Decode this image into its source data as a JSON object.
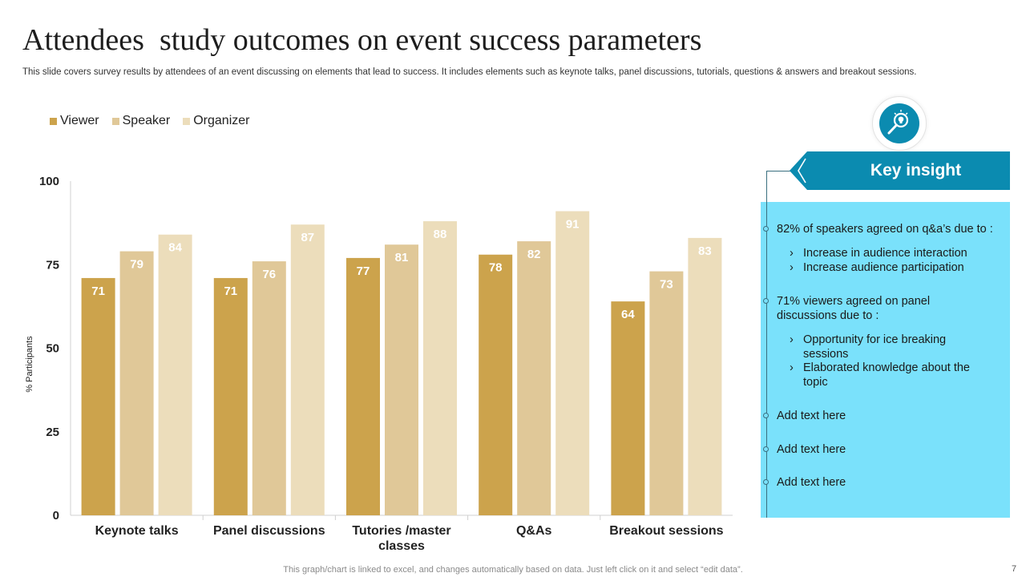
{
  "slide": {
    "title": "Attendees  study outcomes on event success parameters",
    "subtitle": "This slide covers survey results by attendees of an event discussing on elements that lead to success. It includes elements such as keynote talks, panel discussions, tutorials, questions & answers and breakout sessions.",
    "footer": "This graph/chart is linked to excel,  and changes automatically based on data. Just left click on it and select “edit data”.",
    "page_number": "7"
  },
  "chart_data": {
    "type": "bar",
    "title": "",
    "xlabel": "",
    "ylabel": "% Participants",
    "ylim": [
      0,
      100
    ],
    "yticks": [
      0,
      25,
      50,
      75,
      100
    ],
    "categories": [
      "Keynote talks",
      "Panel discussions",
      "Tutories /master classes",
      "Q&As",
      "Breakout sessions"
    ],
    "category_lines": [
      [
        "Keynote talks"
      ],
      [
        "Panel discussions"
      ],
      [
        "Tutories /master",
        "classes"
      ],
      [
        "Q&As"
      ],
      [
        "Breakout sessions"
      ]
    ],
    "series": [
      {
        "name": "Viewer",
        "color": "#cca34c",
        "values": [
          71,
          71,
          77,
          78,
          64
        ]
      },
      {
        "name": "Speaker",
        "color": "#e0c898",
        "values": [
          79,
          76,
          81,
          82,
          73
        ]
      },
      {
        "name": "Organizer",
        "color": "#ecddbb",
        "values": [
          84,
          87,
          88,
          91,
          83
        ]
      }
    ],
    "legend_position": "top-left",
    "grid": false
  },
  "insight": {
    "heading": "Key insight",
    "icon": "lightbulb-magnifier-icon",
    "accent_color": "#0b8bb0",
    "panel_color": "#7ae1fb",
    "points": [
      {
        "text": "82% of speakers agreed on q&a’s due to :",
        "subs": [
          "Increase in audience interaction",
          "Increase audience participation"
        ]
      },
      {
        "text": "71% viewers agreed on panel discussions due to :",
        "subs": [
          "Opportunity for ice breaking sessions",
          "Elaborated knowledge about the topic"
        ]
      },
      {
        "text": "Add text here",
        "subs": []
      },
      {
        "text": "Add text here",
        "subs": []
      },
      {
        "text": "Add text here",
        "subs": []
      }
    ],
    "sub_bullet": "›"
  }
}
